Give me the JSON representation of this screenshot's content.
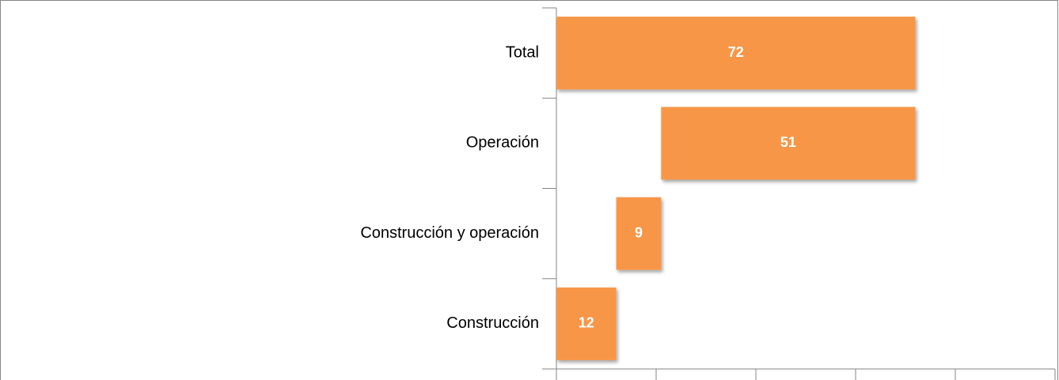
{
  "chart_data": {
    "type": "waterfall",
    "categories": [
      "Construcción",
      "Construcción y operación",
      "Operación",
      "Total"
    ],
    "values": [
      12,
      9,
      51,
      72
    ],
    "color": "#f79646",
    "xlim": [
      0,
      100
    ],
    "xticks": [
      0,
      20,
      40,
      60,
      80,
      100
    ]
  }
}
